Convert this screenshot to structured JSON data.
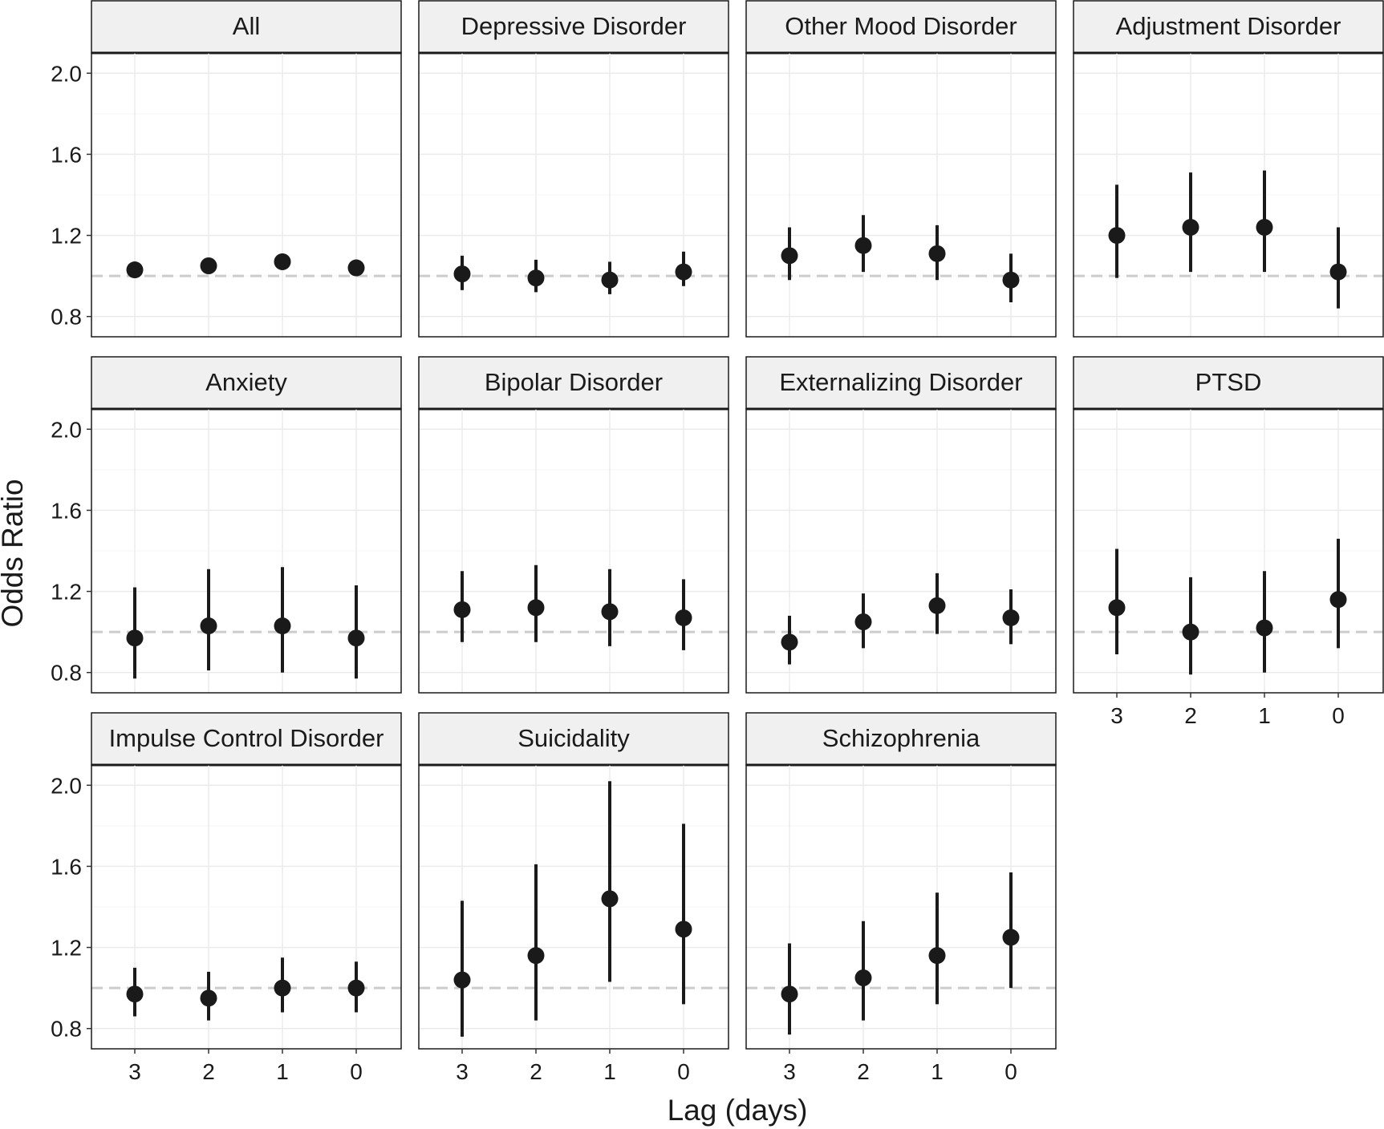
{
  "chart_data": {
    "type": "scatter",
    "subtype": "point estimates with confidence interval error bars, faceted",
    "xlabel": "Lag (days)",
    "ylabel": "Odds Ratio",
    "x_ticks": [
      "3",
      "2",
      "1",
      "0"
    ],
    "y_ticks": [
      "0.8",
      "1.2",
      "1.6",
      "2.0"
    ],
    "ylim": [
      0.7,
      2.1
    ],
    "reference_line": {
      "y": 1.0,
      "style": "dashed",
      "color": "#cccccc"
    },
    "grid": true,
    "colors": {
      "point": "#1a1a1a",
      "strip_fill": "#f0f0f0",
      "grid": "#ebebeb",
      "panel_border": "#1a1a1a"
    },
    "facets": [
      {
        "title": "All",
        "points": [
          {
            "lag": "3",
            "or": 1.03,
            "lower": 1.01,
            "upper": 1.06
          },
          {
            "lag": "2",
            "or": 1.05,
            "lower": 1.02,
            "upper": 1.09
          },
          {
            "lag": "1",
            "or": 1.07,
            "lower": 1.03,
            "upper": 1.11
          },
          {
            "lag": "0",
            "or": 1.04,
            "lower": 1.01,
            "upper": 1.08
          }
        ]
      },
      {
        "title": "Depressive Disorder",
        "points": [
          {
            "lag": "3",
            "or": 1.01,
            "lower": 0.93,
            "upper": 1.1
          },
          {
            "lag": "2",
            "or": 0.99,
            "lower": 0.92,
            "upper": 1.08
          },
          {
            "lag": "1",
            "or": 0.98,
            "lower": 0.91,
            "upper": 1.07
          },
          {
            "lag": "0",
            "or": 1.02,
            "lower": 0.95,
            "upper": 1.12
          }
        ]
      },
      {
        "title": "Other Mood Disorder",
        "points": [
          {
            "lag": "3",
            "or": 1.1,
            "lower": 0.98,
            "upper": 1.24
          },
          {
            "lag": "2",
            "or": 1.15,
            "lower": 1.02,
            "upper": 1.3
          },
          {
            "lag": "1",
            "or": 1.11,
            "lower": 0.98,
            "upper": 1.25
          },
          {
            "lag": "0",
            "or": 0.98,
            "lower": 0.87,
            "upper": 1.11
          }
        ]
      },
      {
        "title": "Adjustment Disorder",
        "points": [
          {
            "lag": "3",
            "or": 1.2,
            "lower": 0.99,
            "upper": 1.45
          },
          {
            "lag": "2",
            "or": 1.24,
            "lower": 1.02,
            "upper": 1.51
          },
          {
            "lag": "1",
            "or": 1.24,
            "lower": 1.02,
            "upper": 1.52
          },
          {
            "lag": "0",
            "or": 1.02,
            "lower": 0.84,
            "upper": 1.24
          }
        ]
      },
      {
        "title": "Anxiety",
        "points": [
          {
            "lag": "3",
            "or": 0.97,
            "lower": 0.77,
            "upper": 1.22
          },
          {
            "lag": "2",
            "or": 1.03,
            "lower": 0.81,
            "upper": 1.31
          },
          {
            "lag": "1",
            "or": 1.03,
            "lower": 0.8,
            "upper": 1.32
          },
          {
            "lag": "0",
            "or": 0.97,
            "lower": 0.77,
            "upper": 1.23
          }
        ]
      },
      {
        "title": "Bipolar Disorder",
        "points": [
          {
            "lag": "3",
            "or": 1.11,
            "lower": 0.95,
            "upper": 1.3
          },
          {
            "lag": "2",
            "or": 1.12,
            "lower": 0.95,
            "upper": 1.33
          },
          {
            "lag": "1",
            "or": 1.1,
            "lower": 0.93,
            "upper": 1.31
          },
          {
            "lag": "0",
            "or": 1.07,
            "lower": 0.91,
            "upper": 1.26
          }
        ]
      },
      {
        "title": "Externalizing Disorder",
        "points": [
          {
            "lag": "3",
            "or": 0.95,
            "lower": 0.84,
            "upper": 1.08
          },
          {
            "lag": "2",
            "or": 1.05,
            "lower": 0.92,
            "upper": 1.19
          },
          {
            "lag": "1",
            "or": 1.13,
            "lower": 0.99,
            "upper": 1.29
          },
          {
            "lag": "0",
            "or": 1.07,
            "lower": 0.94,
            "upper": 1.21
          }
        ]
      },
      {
        "title": "PTSD",
        "points": [
          {
            "lag": "3",
            "or": 1.12,
            "lower": 0.89,
            "upper": 1.41
          },
          {
            "lag": "2",
            "or": 1.0,
            "lower": 0.79,
            "upper": 1.27
          },
          {
            "lag": "1",
            "or": 1.02,
            "lower": 0.8,
            "upper": 1.3
          },
          {
            "lag": "0",
            "or": 1.16,
            "lower": 0.92,
            "upper": 1.46
          }
        ]
      },
      {
        "title": "Impulse Control Disorder",
        "points": [
          {
            "lag": "3",
            "or": 0.97,
            "lower": 0.86,
            "upper": 1.1
          },
          {
            "lag": "2",
            "or": 0.95,
            "lower": 0.84,
            "upper": 1.08
          },
          {
            "lag": "1",
            "or": 1.0,
            "lower": 0.88,
            "upper": 1.15
          },
          {
            "lag": "0",
            "or": 1.0,
            "lower": 0.88,
            "upper": 1.13
          }
        ]
      },
      {
        "title": "Suicidality",
        "points": [
          {
            "lag": "3",
            "or": 1.04,
            "lower": 0.76,
            "upper": 1.43
          },
          {
            "lag": "2",
            "or": 1.16,
            "lower": 0.84,
            "upper": 1.61
          },
          {
            "lag": "1",
            "or": 1.44,
            "lower": 1.03,
            "upper": 2.02
          },
          {
            "lag": "0",
            "or": 1.29,
            "lower": 0.92,
            "upper": 1.81
          }
        ]
      },
      {
        "title": "Schizophrenia",
        "points": [
          {
            "lag": "3",
            "or": 0.97,
            "lower": 0.77,
            "upper": 1.22
          },
          {
            "lag": "2",
            "or": 1.05,
            "lower": 0.84,
            "upper": 1.33
          },
          {
            "lag": "1",
            "or": 1.16,
            "lower": 0.92,
            "upper": 1.47
          },
          {
            "lag": "0",
            "or": 1.25,
            "lower": 1.0,
            "upper": 1.57
          }
        ]
      }
    ]
  }
}
